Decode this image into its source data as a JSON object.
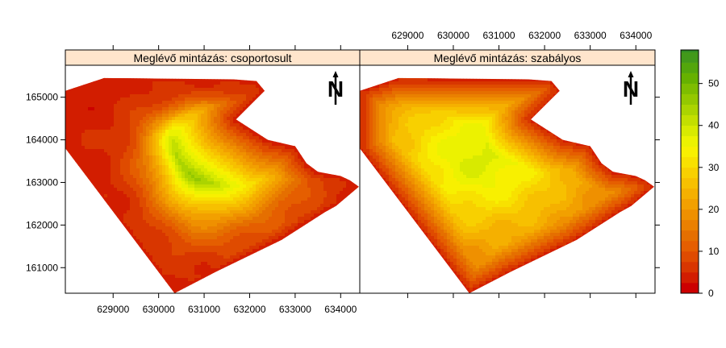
{
  "chart_data": {
    "type": "heatmap",
    "panels": [
      {
        "title": "Meglévő mintázás: csoportosult",
        "hotspot": [
          631000,
          163950
        ],
        "peak_value": 57,
        "shape": "asymmetric"
      },
      {
        "title": "Meglévő mintázás: szabályos",
        "hotspot": [
          630600,
          163600
        ],
        "peak_value": 38,
        "shape": "symmetric"
      }
    ],
    "x_ticks": [
      "629000",
      "630000",
      "631000",
      "632000",
      "633000",
      "634000"
    ],
    "x_tick_values": [
      629000,
      630000,
      631000,
      632000,
      633000,
      634000
    ],
    "y_ticks": [
      "161000",
      "162000",
      "163000",
      "164000",
      "165000"
    ],
    "y_tick_values": [
      161000,
      162000,
      163000,
      164000,
      165000
    ],
    "xlim": [
      627950,
      634420
    ],
    "ylim": [
      160400,
      165750
    ],
    "study_area_polygon": [
      [
        627950,
        165150
      ],
      [
        628800,
        165450
      ],
      [
        631650,
        165420
      ],
      [
        632150,
        165380
      ],
      [
        632330,
        165150
      ],
      [
        631700,
        164480
      ],
      [
        632400,
        164000
      ],
      [
        633000,
        163850
      ],
      [
        633250,
        163450
      ],
      [
        633500,
        163250
      ],
      [
        634000,
        163150
      ],
      [
        634200,
        163050
      ],
      [
        634400,
        162900
      ],
      [
        633900,
        162450
      ],
      [
        633650,
        162300
      ],
      [
        632700,
        161650
      ],
      [
        631250,
        160900
      ],
      [
        630350,
        160400
      ],
      [
        627950,
        163800
      ]
    ],
    "colorbar": {
      "ticks": [
        "0",
        "10",
        "20",
        "30",
        "40",
        "50"
      ],
      "tick_values": [
        0,
        10,
        20,
        30,
        40,
        50
      ],
      "range": [
        0,
        58
      ],
      "step": 2.5,
      "colors": [
        "#cc0000",
        "#d21d00",
        "#d83600",
        "#df4b00",
        "#e55e00",
        "#e56f00",
        "#ea8000",
        "#ef9000",
        "#f2a000",
        "#f5b000",
        "#f7c000",
        "#f8d000",
        "#f8e100",
        "#f8f000",
        "#ecf200",
        "#d8ea00",
        "#c3df00",
        "#abd400",
        "#94c800",
        "#7ebd00",
        "#66b100",
        "#53a60c",
        "#42991a",
        "#2f8c22"
      ]
    },
    "north_arrow": "N"
  }
}
